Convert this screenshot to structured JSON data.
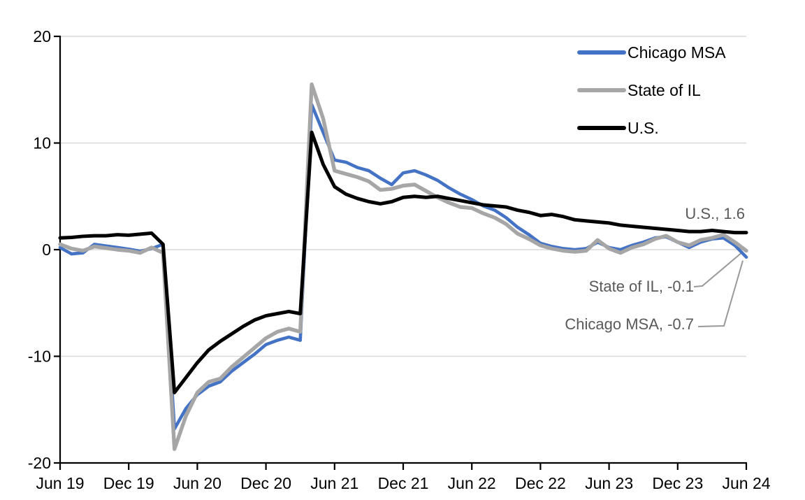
{
  "chart_data": {
    "type": "line",
    "title": "",
    "frequency": "monthly",
    "x_axis": {
      "start": "Jun 2019",
      "end": "Jun 2024",
      "tick_labels": [
        "Jun 19",
        "Dec 19",
        "Jun 20",
        "Dec 20",
        "Jun 21",
        "Dec 21",
        "Jun 22",
        "Dec 22",
        "Jun 23",
        "Dec 23",
        "Jun 24"
      ]
    },
    "y_axis": {
      "range": [
        -20,
        20
      ],
      "ticks": [
        20,
        10,
        0,
        -10,
        -20
      ],
      "gridlines_at": [
        20,
        10,
        0,
        -10
      ]
    },
    "categories": [
      "Jun 19",
      "Jul 19",
      "Aug 19",
      "Sep 19",
      "Oct 19",
      "Nov 19",
      "Dec 19",
      "Jan 20",
      "Feb 20",
      "Mar 20",
      "Apr 20",
      "May 20",
      "Jun 20",
      "Jul 20",
      "Aug 20",
      "Sep 20",
      "Oct 20",
      "Nov 20",
      "Dec 20",
      "Jan 21",
      "Feb 21",
      "Mar 21",
      "Apr 21",
      "May 21",
      "Jun 21",
      "Jul 21",
      "Aug 21",
      "Sep 21",
      "Oct 21",
      "Nov 21",
      "Dec 21",
      "Jan 22",
      "Feb 22",
      "Mar 22",
      "Apr 22",
      "May 22",
      "Jun 22",
      "Jul 22",
      "Aug 22",
      "Sep 22",
      "Oct 22",
      "Nov 22",
      "Dec 22",
      "Jan 23",
      "Feb 23",
      "Mar 23",
      "Apr 23",
      "May 23",
      "Jun 23",
      "Jul 23",
      "Aug 23",
      "Sep 23",
      "Oct 23",
      "Nov 23",
      "Dec 23",
      "Jan 24",
      "Feb 24",
      "Mar 24",
      "Apr 24",
      "May 24",
      "Jun 24"
    ],
    "series": [
      {
        "name": "Chicago MSA",
        "color": "#4472C4",
        "values": [
          0.2,
          -0.4,
          -0.3,
          0.5,
          0.35,
          0.2,
          0.05,
          -0.15,
          0.1,
          0.5,
          -16.8,
          -14.9,
          -13.6,
          -12.8,
          -12.4,
          -11.4,
          -10.6,
          -9.8,
          -8.9,
          -8.5,
          -8.2,
          -8.5,
          13.6,
          11.0,
          8.4,
          8.2,
          7.7,
          7.4,
          6.7,
          6.1,
          7.2,
          7.4,
          7.0,
          6.5,
          5.8,
          5.2,
          4.7,
          4.1,
          3.7,
          3.0,
          2.1,
          1.4,
          0.6,
          0.3,
          0.1,
          0.0,
          0.1,
          0.7,
          0.2,
          0.0,
          0.4,
          0.7,
          1.1,
          1.2,
          0.7,
          0.2,
          0.7,
          1.0,
          1.1,
          0.4,
          -0.7
        ]
      },
      {
        "name": "State of IL",
        "color": "#A6A6A6",
        "values": [
          0.5,
          0.1,
          -0.1,
          0.3,
          0.15,
          0.0,
          -0.1,
          -0.3,
          0.2,
          -0.3,
          -18.7,
          -15.6,
          -13.4,
          -12.4,
          -12.1,
          -11.0,
          -10.1,
          -9.2,
          -8.3,
          -7.7,
          -7.4,
          -7.7,
          15.5,
          12.3,
          7.4,
          7.1,
          6.8,
          6.4,
          5.6,
          5.7,
          6.0,
          6.1,
          5.5,
          4.9,
          4.4,
          4.0,
          3.9,
          3.4,
          3.0,
          2.4,
          1.5,
          1.0,
          0.4,
          0.1,
          -0.1,
          -0.2,
          -0.1,
          0.9,
          0.1,
          -0.3,
          0.2,
          0.5,
          1.0,
          1.3,
          0.7,
          0.4,
          0.9,
          1.1,
          1.4,
          0.7,
          -0.1
        ]
      },
      {
        "name": "U.S.",
        "color": "#000000",
        "values": [
          1.1,
          1.15,
          1.25,
          1.3,
          1.3,
          1.4,
          1.35,
          1.45,
          1.55,
          0.5,
          -13.4,
          -12.0,
          -10.6,
          -9.4,
          -8.6,
          -7.9,
          -7.2,
          -6.6,
          -6.2,
          -6.0,
          -5.8,
          -6.0,
          11.0,
          8.0,
          5.9,
          5.2,
          4.8,
          4.5,
          4.3,
          4.5,
          4.9,
          5.0,
          4.9,
          5.0,
          4.8,
          4.6,
          4.4,
          4.2,
          4.1,
          4.0,
          3.7,
          3.5,
          3.2,
          3.3,
          3.1,
          2.8,
          2.7,
          2.6,
          2.5,
          2.3,
          2.2,
          2.1,
          2.0,
          1.9,
          1.8,
          1.7,
          1.7,
          1.8,
          1.7,
          1.6,
          1.6
        ]
      }
    ],
    "legend_position": "top-right",
    "annotations": [
      {
        "text": "U.S., 1.6",
        "series": "U.S.",
        "value": 1.6
      },
      {
        "text": "State of IL, -0.1",
        "series": "State of IL",
        "value": -0.1
      },
      {
        "text": "Chicago MSA, -0.7",
        "series": "Chicago MSA",
        "value": -0.7
      }
    ],
    "colors": {
      "grid": "#D9D9D9",
      "axis": "#000000",
      "annotation_text": "#595959",
      "leader_line": "#999999"
    }
  }
}
